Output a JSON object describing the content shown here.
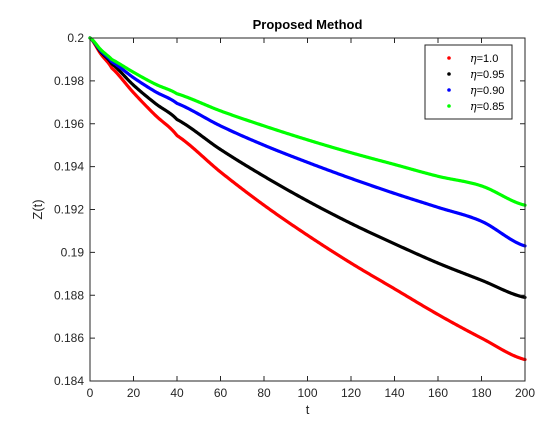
{
  "chart_data": {
    "type": "line",
    "title": "Proposed Method",
    "xlabel": "t",
    "ylabel": "Z(t)",
    "xlim": [
      0,
      200
    ],
    "ylim": [
      0.184,
      0.2
    ],
    "xticks": [
      0,
      20,
      40,
      60,
      80,
      100,
      120,
      140,
      160,
      180,
      200
    ],
    "yticks": [
      0.184,
      0.186,
      0.188,
      0.19,
      0.192,
      0.194,
      0.196,
      0.198,
      0.2
    ],
    "ytick_labels": [
      "0.184",
      "0.186",
      "0.188",
      "0.19",
      "0.192",
      "0.194",
      "0.196",
      "0.198",
      "0.2"
    ],
    "grid": false,
    "legend_position": "top-right",
    "x": [
      0,
      5,
      10,
      20,
      30,
      40,
      60,
      80,
      100,
      120,
      140,
      160,
      180,
      200
    ],
    "series": [
      {
        "name": "η=1.0",
        "legend_symbol": "η",
        "legend_value": "=1.0",
        "color": "#ff0000",
        "values": [
          0.2,
          0.19925,
          0.1986,
          0.19745,
          0.1964,
          0.19545,
          0.19375,
          0.1922,
          0.1908,
          0.1895,
          0.1883,
          0.1871,
          0.186,
          0.185
        ]
      },
      {
        "name": "η=0.95",
        "legend_symbol": "η",
        "legend_value": "=0.95",
        "color": "#000000",
        "values": [
          0.2,
          0.19935,
          0.1988,
          0.1978,
          0.19695,
          0.1962,
          0.1948,
          0.19355,
          0.1924,
          0.19135,
          0.1904,
          0.1895,
          0.1887,
          0.1879
        ]
      },
      {
        "name": "η=0.90",
        "legend_symbol": "η",
        "legend_value": "=0.90",
        "color": "#0000ff",
        "values": [
          0.2,
          0.1994,
          0.1989,
          0.19815,
          0.1975,
          0.19695,
          0.1959,
          0.195,
          0.1942,
          0.19345,
          0.19275,
          0.1921,
          0.19145,
          0.1903
        ]
      },
      {
        "name": "η=0.85",
        "legend_symbol": "η",
        "legend_value": "=0.85",
        "color": "#00ff00",
        "values": [
          0.2,
          0.19945,
          0.199,
          0.1984,
          0.19785,
          0.1974,
          0.1966,
          0.1959,
          0.19525,
          0.19465,
          0.1941,
          0.19355,
          0.1931,
          0.1922
        ]
      }
    ]
  }
}
